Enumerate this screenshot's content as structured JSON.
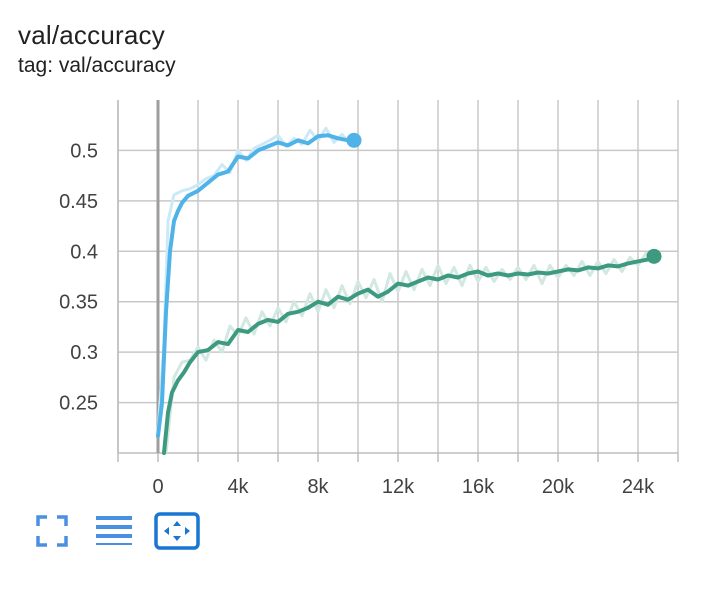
{
  "header": {
    "title": "val/accuracy",
    "tag_text": "tag: val/accuracy"
  },
  "toolbar": {
    "icons": [
      "fullscreen-icon",
      "toggle-log-scale-icon",
      "fit-domain-icon"
    ],
    "accent_color": "#1976d2",
    "icon_color": "#4a90e2"
  },
  "chart_data": {
    "type": "line",
    "title": "val/accuracy",
    "xlim": [
      -2000,
      26000
    ],
    "ylim": [
      0.2,
      0.55
    ],
    "x_ticks": [
      {
        "value": 0,
        "label": "0"
      },
      {
        "value": 4000,
        "label": "4k"
      },
      {
        "value": 8000,
        "label": "8k"
      },
      {
        "value": 12000,
        "label": "12k"
      },
      {
        "value": 16000,
        "label": "16k"
      },
      {
        "value": 20000,
        "label": "20k"
      },
      {
        "value": 24000,
        "label": "24k"
      }
    ],
    "y_ticks": [
      {
        "value": 0.25,
        "label": "0.25"
      },
      {
        "value": 0.3,
        "label": "0.3"
      },
      {
        "value": 0.35,
        "label": "0.35"
      },
      {
        "value": 0.4,
        "label": "0.4"
      },
      {
        "value": 0.45,
        "label": "0.45"
      },
      {
        "value": 0.5,
        "label": "0.5"
      }
    ],
    "grid": true,
    "series": [
      {
        "color": "#4fb3e8",
        "raw_color": "#cce9f8",
        "smoothed": [
          [
            0,
            0.217
          ],
          [
            200,
            0.25
          ],
          [
            400,
            0.34
          ],
          [
            600,
            0.4
          ],
          [
            800,
            0.43
          ],
          [
            1000,
            0.44
          ],
          [
            1200,
            0.448
          ],
          [
            1500,
            0.455
          ],
          [
            2000,
            0.46
          ],
          [
            2500,
            0.468
          ],
          [
            3000,
            0.476
          ],
          [
            3500,
            0.479
          ],
          [
            4000,
            0.494
          ],
          [
            4500,
            0.492
          ],
          [
            5000,
            0.5
          ],
          [
            5500,
            0.504
          ],
          [
            6000,
            0.508
          ],
          [
            6500,
            0.505
          ],
          [
            7000,
            0.51
          ],
          [
            7500,
            0.507
          ],
          [
            8000,
            0.514
          ],
          [
            8500,
            0.515
          ],
          [
            9000,
            0.512
          ],
          [
            9500,
            0.51
          ],
          [
            9800,
            0.51
          ]
        ],
        "raw": [
          [
            0,
            0.22
          ],
          [
            300,
            0.31
          ],
          [
            500,
            0.43
          ],
          [
            800,
            0.456
          ],
          [
            1200,
            0.46
          ],
          [
            1600,
            0.462
          ],
          [
            2000,
            0.466
          ],
          [
            2400,
            0.472
          ],
          [
            2800,
            0.475
          ],
          [
            3200,
            0.486
          ],
          [
            3600,
            0.478
          ],
          [
            4000,
            0.5
          ],
          [
            4400,
            0.49
          ],
          [
            4800,
            0.502
          ],
          [
            5200,
            0.506
          ],
          [
            5600,
            0.51
          ],
          [
            6000,
            0.515
          ],
          [
            6400,
            0.504
          ],
          [
            6800,
            0.512
          ],
          [
            7200,
            0.506
          ],
          [
            7600,
            0.52
          ],
          [
            8000,
            0.51
          ],
          [
            8400,
            0.522
          ],
          [
            8800,
            0.508
          ],
          [
            9200,
            0.516
          ],
          [
            9600,
            0.506
          ]
        ]
      },
      {
        "color": "#3d9a80",
        "raw_color": "#d2e8e1",
        "smoothed": [
          [
            300,
            0.2
          ],
          [
            500,
            0.24
          ],
          [
            700,
            0.26
          ],
          [
            1000,
            0.272
          ],
          [
            1300,
            0.28
          ],
          [
            1600,
            0.29
          ],
          [
            2000,
            0.3
          ],
          [
            2500,
            0.302
          ],
          [
            3000,
            0.31
          ],
          [
            3500,
            0.308
          ],
          [
            4000,
            0.322
          ],
          [
            4500,
            0.32
          ],
          [
            5000,
            0.328
          ],
          [
            5500,
            0.332
          ],
          [
            6000,
            0.33
          ],
          [
            6500,
            0.338
          ],
          [
            7000,
            0.34
          ],
          [
            7500,
            0.344
          ],
          [
            8000,
            0.35
          ],
          [
            8500,
            0.347
          ],
          [
            9000,
            0.355
          ],
          [
            9500,
            0.352
          ],
          [
            10000,
            0.358
          ],
          [
            10500,
            0.362
          ],
          [
            11000,
            0.355
          ],
          [
            11500,
            0.36
          ],
          [
            12000,
            0.368
          ],
          [
            12500,
            0.366
          ],
          [
            13000,
            0.37
          ],
          [
            13500,
            0.374
          ],
          [
            14000,
            0.372
          ],
          [
            14500,
            0.376
          ],
          [
            15000,
            0.374
          ],
          [
            15500,
            0.378
          ],
          [
            16000,
            0.38
          ],
          [
            16500,
            0.376
          ],
          [
            17000,
            0.378
          ],
          [
            17500,
            0.376
          ],
          [
            18000,
            0.378
          ],
          [
            18500,
            0.377
          ],
          [
            19000,
            0.379
          ],
          [
            19500,
            0.378
          ],
          [
            20000,
            0.38
          ],
          [
            20500,
            0.382
          ],
          [
            21000,
            0.381
          ],
          [
            21500,
            0.384
          ],
          [
            22000,
            0.383
          ],
          [
            22500,
            0.386
          ],
          [
            23000,
            0.385
          ],
          [
            23500,
            0.388
          ],
          [
            24000,
            0.39
          ],
          [
            24500,
            0.392
          ],
          [
            24800,
            0.395
          ]
        ],
        "raw": [
          [
            400,
            0.2
          ],
          [
            800,
            0.275
          ],
          [
            1200,
            0.29
          ],
          [
            1600,
            0.292
          ],
          [
            2000,
            0.305
          ],
          [
            2400,
            0.292
          ],
          [
            2800,
            0.312
          ],
          [
            3200,
            0.3
          ],
          [
            3600,
            0.326
          ],
          [
            4000,
            0.316
          ],
          [
            4400,
            0.334
          ],
          [
            4800,
            0.318
          ],
          [
            5200,
            0.34
          ],
          [
            5600,
            0.326
          ],
          [
            6000,
            0.344
          ],
          [
            6400,
            0.33
          ],
          [
            6800,
            0.35
          ],
          [
            7200,
            0.336
          ],
          [
            7600,
            0.358
          ],
          [
            8000,
            0.34
          ],
          [
            8400,
            0.362
          ],
          [
            8800,
            0.344
          ],
          [
            9200,
            0.366
          ],
          [
            9600,
            0.348
          ],
          [
            10000,
            0.37
          ],
          [
            10400,
            0.354
          ],
          [
            10800,
            0.372
          ],
          [
            11200,
            0.35
          ],
          [
            11600,
            0.378
          ],
          [
            12000,
            0.36
          ],
          [
            12400,
            0.38
          ],
          [
            12800,
            0.362
          ],
          [
            13200,
            0.382
          ],
          [
            13600,
            0.366
          ],
          [
            14000,
            0.386
          ],
          [
            14400,
            0.368
          ],
          [
            14800,
            0.384
          ],
          [
            15200,
            0.366
          ],
          [
            15600,
            0.386
          ],
          [
            16000,
            0.37
          ],
          [
            16400,
            0.384
          ],
          [
            16800,
            0.37
          ],
          [
            17200,
            0.382
          ],
          [
            17600,
            0.372
          ],
          [
            18000,
            0.384
          ],
          [
            18400,
            0.372
          ],
          [
            18800,
            0.386
          ],
          [
            19200,
            0.368
          ],
          [
            19600,
            0.386
          ],
          [
            20000,
            0.374
          ],
          [
            20400,
            0.386
          ],
          [
            20800,
            0.376
          ],
          [
            21200,
            0.39
          ],
          [
            21600,
            0.376
          ],
          [
            22000,
            0.39
          ],
          [
            22400,
            0.378
          ],
          [
            22800,
            0.392
          ],
          [
            23200,
            0.38
          ],
          [
            23600,
            0.394
          ],
          [
            24000,
            0.386
          ],
          [
            24400,
            0.398
          ],
          [
            24800,
            0.394
          ]
        ]
      }
    ]
  }
}
